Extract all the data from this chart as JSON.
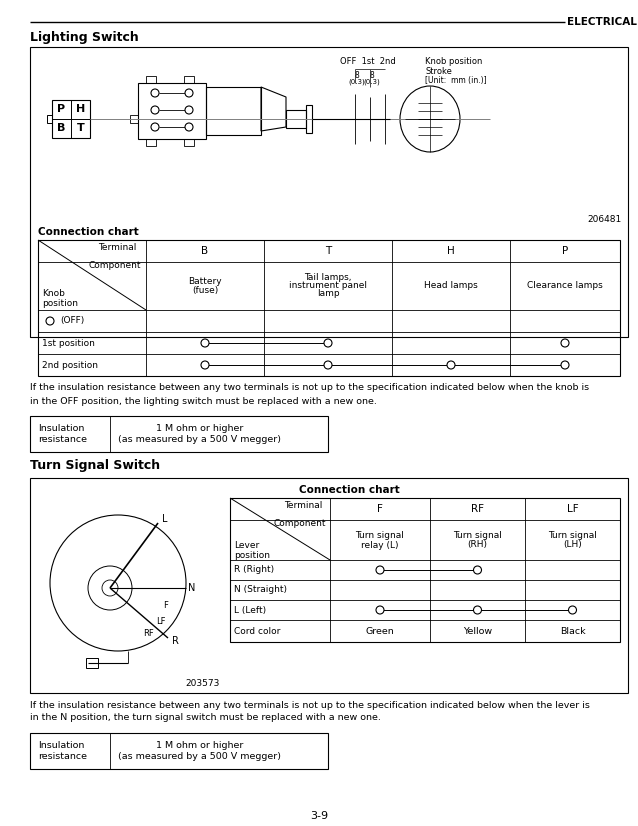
{
  "header_line": "ELECTRICAL  SYSTEM",
  "section1_title": "Lighting Switch",
  "section2_title": "Turn Signal Switch",
  "connection_chart": "Connection chart",
  "ls_terminals": [
    "B",
    "T",
    "H",
    "P"
  ],
  "ls_components": [
    "Battery\n(fuse)",
    "Tail lamps,\ninstrument panel\nlamp",
    "Head lamps",
    "Clearance lamps"
  ],
  "ls_note": "If the insulation resistance between any two terminals is not up to the specification indicated below when the knob is\nin the OFF position, the lighting switch must be replaced with a new one.",
  "ls_insulation_label": "Insulation\nresistance",
  "ls_insulation_value": "1 M ohm or higher\n(as measured by a 500 V megger)",
  "ts_terminals": [
    "F",
    "RF",
    "LF"
  ],
  "ts_components": [
    "Turn signal\nrelay (L)",
    "Turn signal\n(RH)",
    "Turn signal\n(LH)"
  ],
  "ts_note": "If the insulation resistance between any two terminals is not up to the specification indicated below when the lever is\nin the N position, the turn signal switch must be replaced with a new one.",
  "ts_insulation_label": "Insulation\nresistance",
  "ts_insulation_value": "1 M ohm or higher\n(as measured by a 500 V megger)",
  "page_number": "3-9",
  "diagram1_id": "206481",
  "diagram2_id": "203573",
  "bg_color": "#ffffff"
}
